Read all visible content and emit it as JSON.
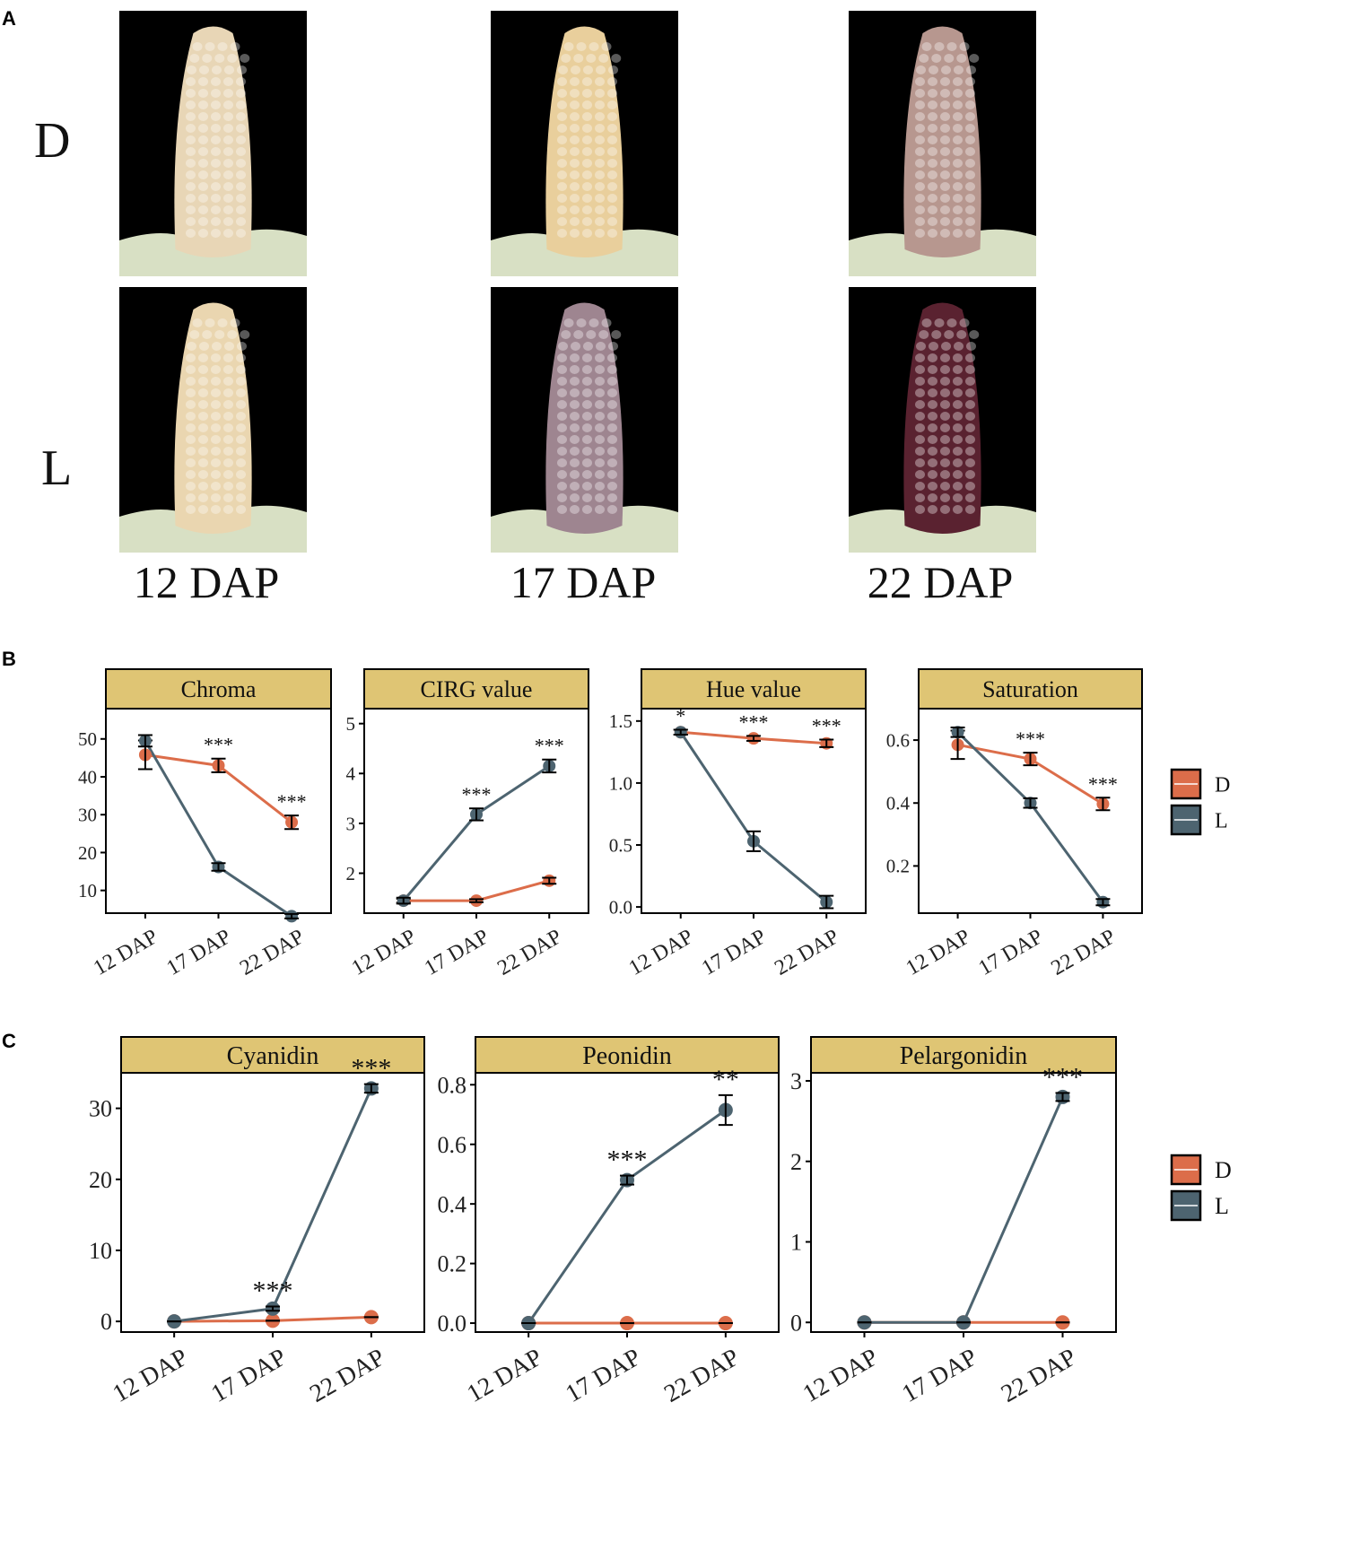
{
  "panels": {
    "a": "A",
    "b": "B",
    "c": "C"
  },
  "photo_grid": {
    "rows": [
      "D",
      "L"
    ],
    "columns": [
      "12 DAP",
      "17 DAP",
      "22 DAP"
    ],
    "kernel_colors": {
      "D": [
        "#e8d6b6",
        "#e9cf9c",
        "#b7978f"
      ],
      "L": [
        "#ead6b0",
        "#9e8590",
        "#5a2230"
      ]
    }
  },
  "colors": {
    "D": "#dc6d4a",
    "L": "#4d6470",
    "strip": "#dfc574",
    "error": "#000000"
  },
  "chart_data": [
    {
      "type": "line",
      "panel": "B",
      "title": "Chroma",
      "categories": [
        "12 DAP",
        "17 DAP",
        "22 DAP"
      ],
      "ylim": [
        4,
        58
      ],
      "yticks": [
        10,
        20,
        30,
        40,
        50
      ],
      "series": [
        {
          "name": "D",
          "values": [
            45.8,
            43.0,
            28.0
          ],
          "errors": [
            3.8,
            1.8,
            1.8
          ]
        },
        {
          "name": "L",
          "values": [
            49.5,
            16.2,
            3.2
          ],
          "errors": [
            1.5,
            1.0,
            0.6
          ]
        }
      ],
      "annotations": [
        "",
        "***",
        "***"
      ]
    },
    {
      "type": "line",
      "panel": "B",
      "title": "CIRG value",
      "categories": [
        "12 DAP",
        "17 DAP",
        "22 DAP"
      ],
      "ylim": [
        1.2,
        5.3
      ],
      "yticks": [
        2,
        3,
        4,
        5
      ],
      "series": [
        {
          "name": "D",
          "values": [
            1.45,
            1.45,
            1.85
          ],
          "errors": [
            0.04,
            0.03,
            0.06
          ]
        },
        {
          "name": "L",
          "values": [
            1.45,
            3.18,
            4.15
          ],
          "errors": [
            0.06,
            0.12,
            0.13
          ]
        }
      ],
      "annotations": [
        "",
        "***",
        "***"
      ]
    },
    {
      "type": "line",
      "panel": "B",
      "title": "Hue value",
      "categories": [
        "12 DAP",
        "17 DAP",
        "22 DAP"
      ],
      "ylim": [
        -0.05,
        1.6
      ],
      "yticks": [
        "0.0",
        "0.5",
        "1.0",
        "1.5"
      ],
      "series": [
        {
          "name": "D",
          "values": [
            1.41,
            1.36,
            1.32
          ],
          "errors": [
            0.02,
            0.02,
            0.03
          ]
        },
        {
          "name": "L",
          "values": [
            1.41,
            0.53,
            0.04
          ],
          "errors": [
            0.02,
            0.08,
            0.05
          ]
        }
      ],
      "annotations": [
        "*",
        "***",
        "***"
      ]
    },
    {
      "type": "line",
      "panel": "B",
      "title": "Saturation",
      "categories": [
        "12 DAP",
        "17 DAP",
        "22 DAP"
      ],
      "ylim": [
        0.05,
        0.7
      ],
      "yticks": [
        0.2,
        0.4,
        0.6
      ],
      "series": [
        {
          "name": "D",
          "values": [
            0.585,
            0.54,
            0.397
          ],
          "errors": [
            0.045,
            0.02,
            0.02
          ]
        },
        {
          "name": "L",
          "values": [
            0.625,
            0.4,
            0.085
          ],
          "errors": [
            0.015,
            0.015,
            0.01
          ]
        }
      ],
      "annotations": [
        "",
        "***",
        "***"
      ]
    },
    {
      "type": "line",
      "panel": "C",
      "title": "Cyanidin",
      "categories": [
        "12 DAP",
        "17 DAP",
        "22 DAP"
      ],
      "ylim": [
        -1.5,
        35
      ],
      "yticks": [
        0,
        10,
        20,
        30
      ],
      "series": [
        {
          "name": "D",
          "values": [
            0,
            0.1,
            0.6
          ],
          "errors": [
            0,
            0,
            0
          ]
        },
        {
          "name": "L",
          "values": [
            0,
            1.8,
            32.8
          ],
          "errors": [
            0,
            0.3,
            0.6
          ]
        }
      ],
      "annotations": [
        "",
        "***",
        "***"
      ]
    },
    {
      "type": "line",
      "panel": "C",
      "title": "Peonidin",
      "categories": [
        "12 DAP",
        "17 DAP",
        "22 DAP"
      ],
      "ylim": [
        -0.03,
        0.84
      ],
      "yticks": [
        "0.0",
        "0.2",
        "0.4",
        "0.6",
        "0.8"
      ],
      "series": [
        {
          "name": "D",
          "values": [
            0,
            0,
            0
          ],
          "errors": [
            0,
            0,
            0
          ]
        },
        {
          "name": "L",
          "values": [
            0,
            0.48,
            0.715
          ],
          "errors": [
            0,
            0.015,
            0.05
          ]
        }
      ],
      "annotations": [
        "",
        "***",
        "**"
      ]
    },
    {
      "type": "line",
      "panel": "C",
      "title": "Pelargonidin",
      "categories": [
        "12 DAP",
        "17 DAP",
        "22 DAP"
      ],
      "ylim": [
        -0.12,
        3.1
      ],
      "yticks": [
        0,
        1,
        2,
        3
      ],
      "series": [
        {
          "name": "D",
          "values": [
            0,
            0,
            0
          ],
          "errors": [
            0,
            0,
            0
          ]
        },
        {
          "name": "L",
          "values": [
            0,
            0,
            2.8
          ],
          "errors": [
            0,
            0,
            0.05
          ]
        }
      ],
      "annotations": [
        "",
        "",
        "***"
      ]
    }
  ],
  "legend": {
    "entries": [
      "D",
      "L"
    ]
  }
}
